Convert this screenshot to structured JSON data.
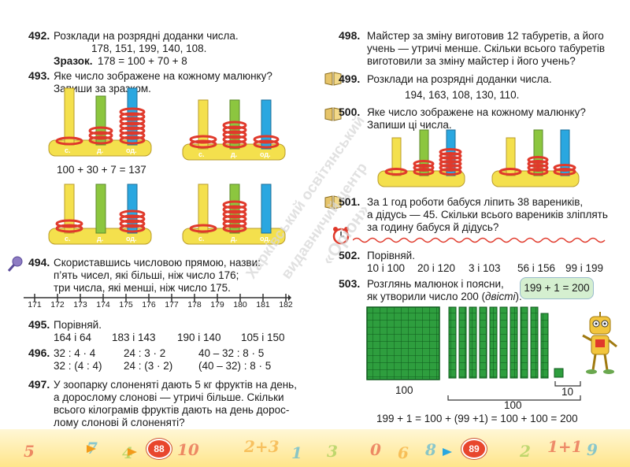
{
  "left_page": {
    "p492": {
      "num": "492.",
      "line1": "Розклади на розрядні доданки числа.",
      "numbers": "178,  151,  199,  140,  108.",
      "sample_label": "Зразок.",
      "sample": "178 = 100 + 70 + 8"
    },
    "p493": {
      "num": "493.",
      "line1": "Яке число зображене на кожному малюнку?",
      "line2": "Запиши за зразком.",
      "example": "100 + 30 + 7 = 137"
    },
    "abacus_labels": {
      "h": "с.",
      "t": "д.",
      "o": "од."
    },
    "p494": {
      "num": "494.",
      "line1": "Скориставшись числовою прямою, назви:",
      "line2": "п’ять чисел, які більші, ніж число 176;",
      "line3": "три числа, які менші, ніж число 175.",
      "ticks": [
        "171",
        "172",
        "173",
        "174",
        "175",
        "176",
        "177",
        "178",
        "179",
        "180",
        "181",
        "182"
      ]
    },
    "p495": {
      "num": "495.",
      "line1": "Порівняй.",
      "pairs": [
        "164 і 64",
        "183 і 143",
        "190 і 140",
        "105 і 150"
      ]
    },
    "p496": {
      "num": "496.",
      "row1": [
        "32 : 4 · 4",
        "24 : 3 · 2",
        "40 – 32 : 8 · 5"
      ],
      "row2": [
        "32 : (4 : 4)",
        "24 : (3 · 2)",
        "(40 – 32) : 8 · 5"
      ]
    },
    "p497": {
      "num": "497.",
      "line1": "У зоопарку слоненяті дають 5 кг фруктів на день,",
      "line2": "а дорослому слонові — утричі більше. Скільки",
      "line3": "всього кілограмів фруктів дають на день дорос-",
      "line4": "лому слонові й слоненяті?"
    },
    "page_number": "88"
  },
  "right_page": {
    "p498": {
      "num": "498.",
      "line1": "Майстер за зміну виготовив 12 табуретів, а його",
      "line2": "учень — утричі менше. Скільки всього табуретів",
      "line3": "виготовили за зміну майстер і його учень?"
    },
    "p499": {
      "num": "499.",
      "line1": "Розклади на розрядні доданки числа.",
      "numbers": "194,  163,  108,  130,  110."
    },
    "p500": {
      "num": "500.",
      "line1": "Яке число зображене на кожному малюнку?",
      "line2": "Запиши ці числа."
    },
    "p501": {
      "num": "501.",
      "line1": "За 1 год роботи бабуся ліпить 38 вареників,",
      "line2": "а дідусь — 45. Скільки всього вареників зліплять",
      "line3": "за годину бабуся й дідусь?"
    },
    "p502": {
      "num": "502.",
      "line1": "Порівняй.",
      "pairs": [
        "10 і 100",
        "20 і 120",
        "3 і 103",
        "56 і 156",
        "99 і 199"
      ]
    },
    "p503": {
      "num": "503.",
      "line1": "Розглянь малюнок і поясни,",
      "line2_a": "як утворили число 200 (",
      "line2_b": "двісті",
      "line2_c": ").",
      "bubble": "199 + 1 = 200",
      "label_100_a": "100",
      "label_100_b": "100",
      "label_10": "10",
      "equation": "199 + 1 = 100 + (99 +1) = 100 + 100 = 200"
    },
    "page_number": "89"
  },
  "watermark": {
    "line1": "Харківський освітянський",
    "line2": "видавничий центр",
    "line3": "«Оріон»"
  },
  "footer_digits": [
    "5",
    "7",
    "4",
    "10",
    "2+3",
    "1",
    "3",
    "0",
    "6",
    "8",
    "2",
    "1+1",
    "9"
  ],
  "colors": {
    "yellow": "#f4e04d",
    "green": "#8cc63f",
    "blue": "#2aa7e0",
    "red": "#e0392b",
    "square_green": "#2e9e3e",
    "ruler": "#333333"
  }
}
